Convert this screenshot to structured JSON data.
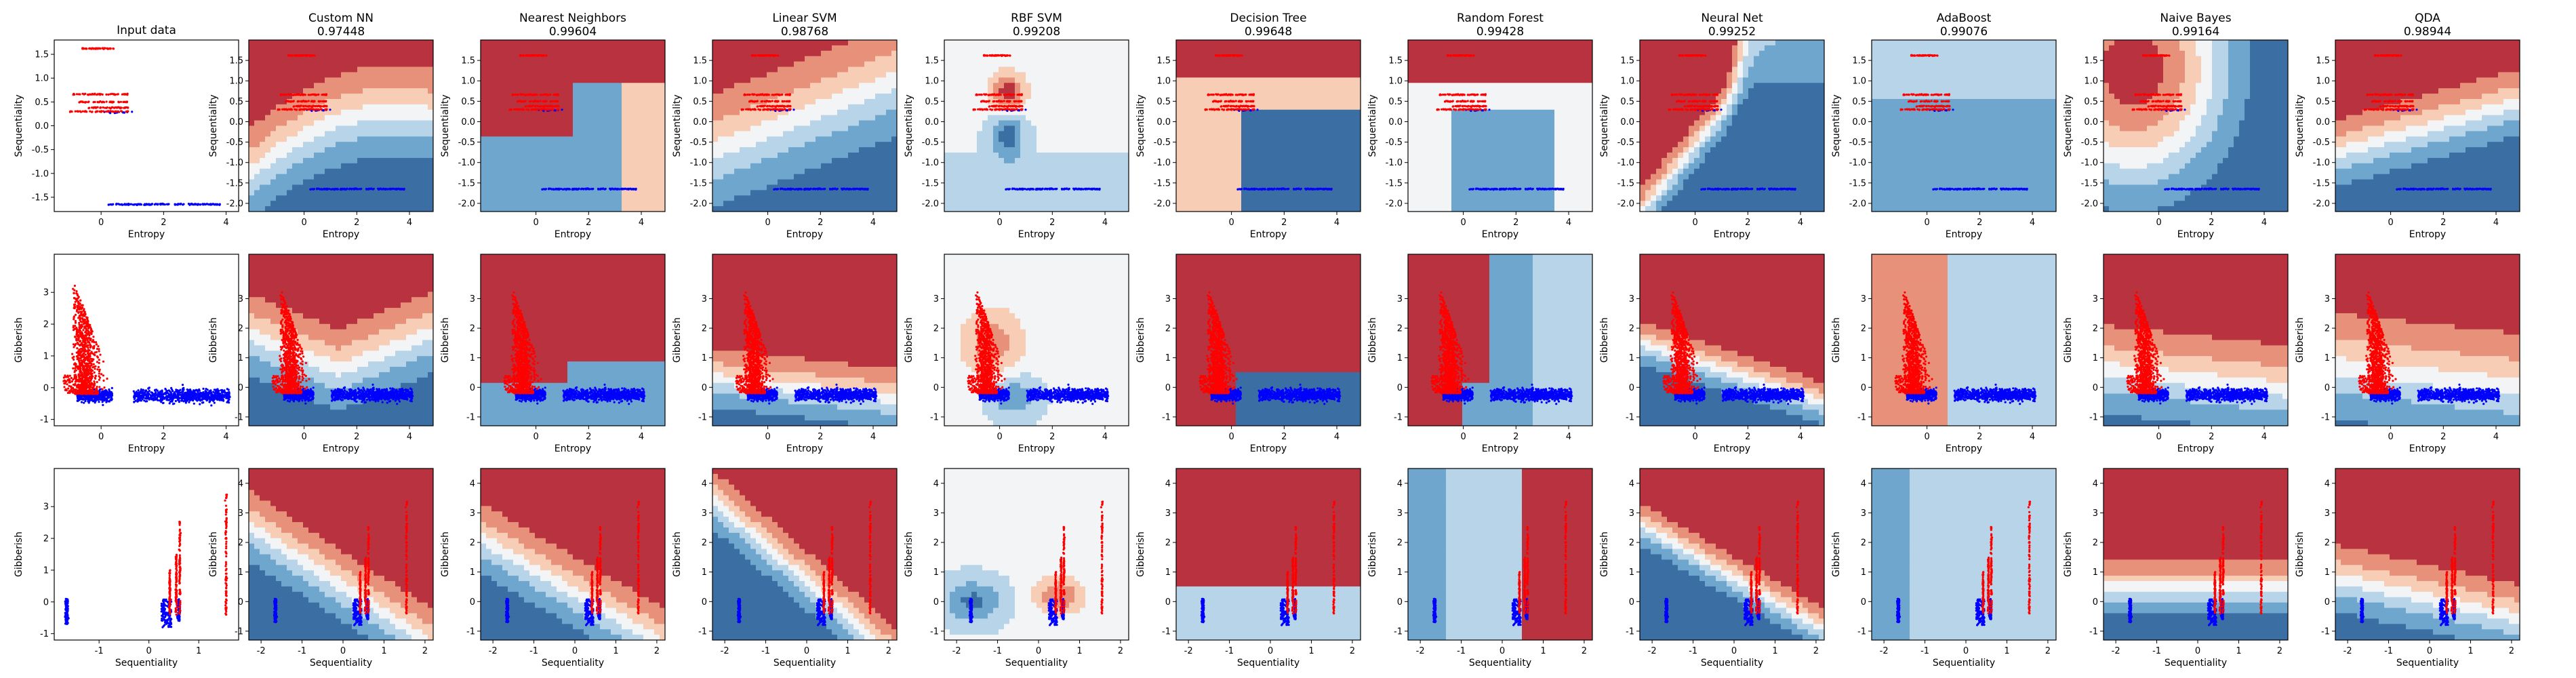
{
  "colors": {
    "cmap": [
      "#3b6fa3",
      "#6ea6ce",
      "#b7d4e8",
      "#f2f4f6",
      "#f7cdb6",
      "#e8917a",
      "#b8333f"
    ],
    "class0": "#ff0000",
    "class1": "#0000ff",
    "axes_edge": "#000000"
  },
  "chart_data": {
    "type": "scatter",
    "layout": "grid 3 rows x 12 columns",
    "title_row": [
      "Input data",
      "Custom NN",
      "Nearest Neighbors",
      "Linear SVM",
      "RBF SVM",
      "Decision Tree",
      "Random Forest",
      "Neural Net",
      "AdaBoost",
      "Naive Bayes",
      "QDA"
    ],
    "scores": [
      "",
      "0.97448",
      "0.99604",
      "0.98768",
      "0.99208",
      "0.99648",
      "0.99428",
      "0.99252",
      "0.99076",
      "0.99164",
      "0.98944"
    ],
    "rows": [
      {
        "xlabel": "Entropy",
        "ylabel": "Sequentiality",
        "input_xticks": [
          "0",
          "2",
          "4"
        ],
        "input_yticks": [
          "1.5",
          "1.0",
          "0.5",
          "0.0",
          "-0.5",
          "-1.0",
          "-1.5"
        ],
        "input_xlim": [
          -1.5,
          4.4
        ],
        "input_ylim": [
          -1.8,
          1.8
        ],
        "model_xticks": [
          "0",
          "2",
          "4"
        ],
        "model_yticks": [
          "1.5",
          "1.0",
          "0.5",
          "0.0",
          "-0.5",
          "-1.0",
          "-1.5",
          "-2.0"
        ],
        "model_xlim": [
          -2.1,
          4.9
        ],
        "model_ylim": [
          -2.2,
          2.0
        ]
      },
      {
        "xlabel": "Entropy",
        "ylabel": "Gibberish",
        "input_xticks": [
          "0",
          "2",
          "4"
        ],
        "input_yticks": [
          "3",
          "2",
          "1",
          "0",
          "-1"
        ],
        "input_xlim": [
          -1.5,
          4.4
        ],
        "input_ylim": [
          -1.2,
          4.2
        ],
        "model_xticks": [
          "0",
          "2",
          "4"
        ],
        "model_yticks": [
          "3",
          "2",
          "1",
          "0",
          "-1"
        ],
        "model_xlim": [
          -2.1,
          4.9
        ],
        "model_ylim": [
          -1.3,
          4.5
        ]
      },
      {
        "xlabel": "Sequentiality",
        "ylabel": "Gibberish",
        "input_xticks": [
          "-1",
          "0",
          "1"
        ],
        "input_yticks": [
          "3",
          "2",
          "1",
          "0",
          "-1"
        ],
        "input_xlim": [
          -1.9,
          1.8
        ],
        "input_ylim": [
          -1.2,
          4.2
        ],
        "model_xticks": [
          "-2",
          "-1",
          "0",
          "1",
          "2"
        ],
        "model_yticks": [
          "4",
          "3",
          "2",
          "1",
          "0",
          "-1"
        ],
        "model_xlim": [
          -2.3,
          2.2
        ],
        "model_ylim": [
          -1.3,
          4.5
        ]
      }
    ]
  }
}
